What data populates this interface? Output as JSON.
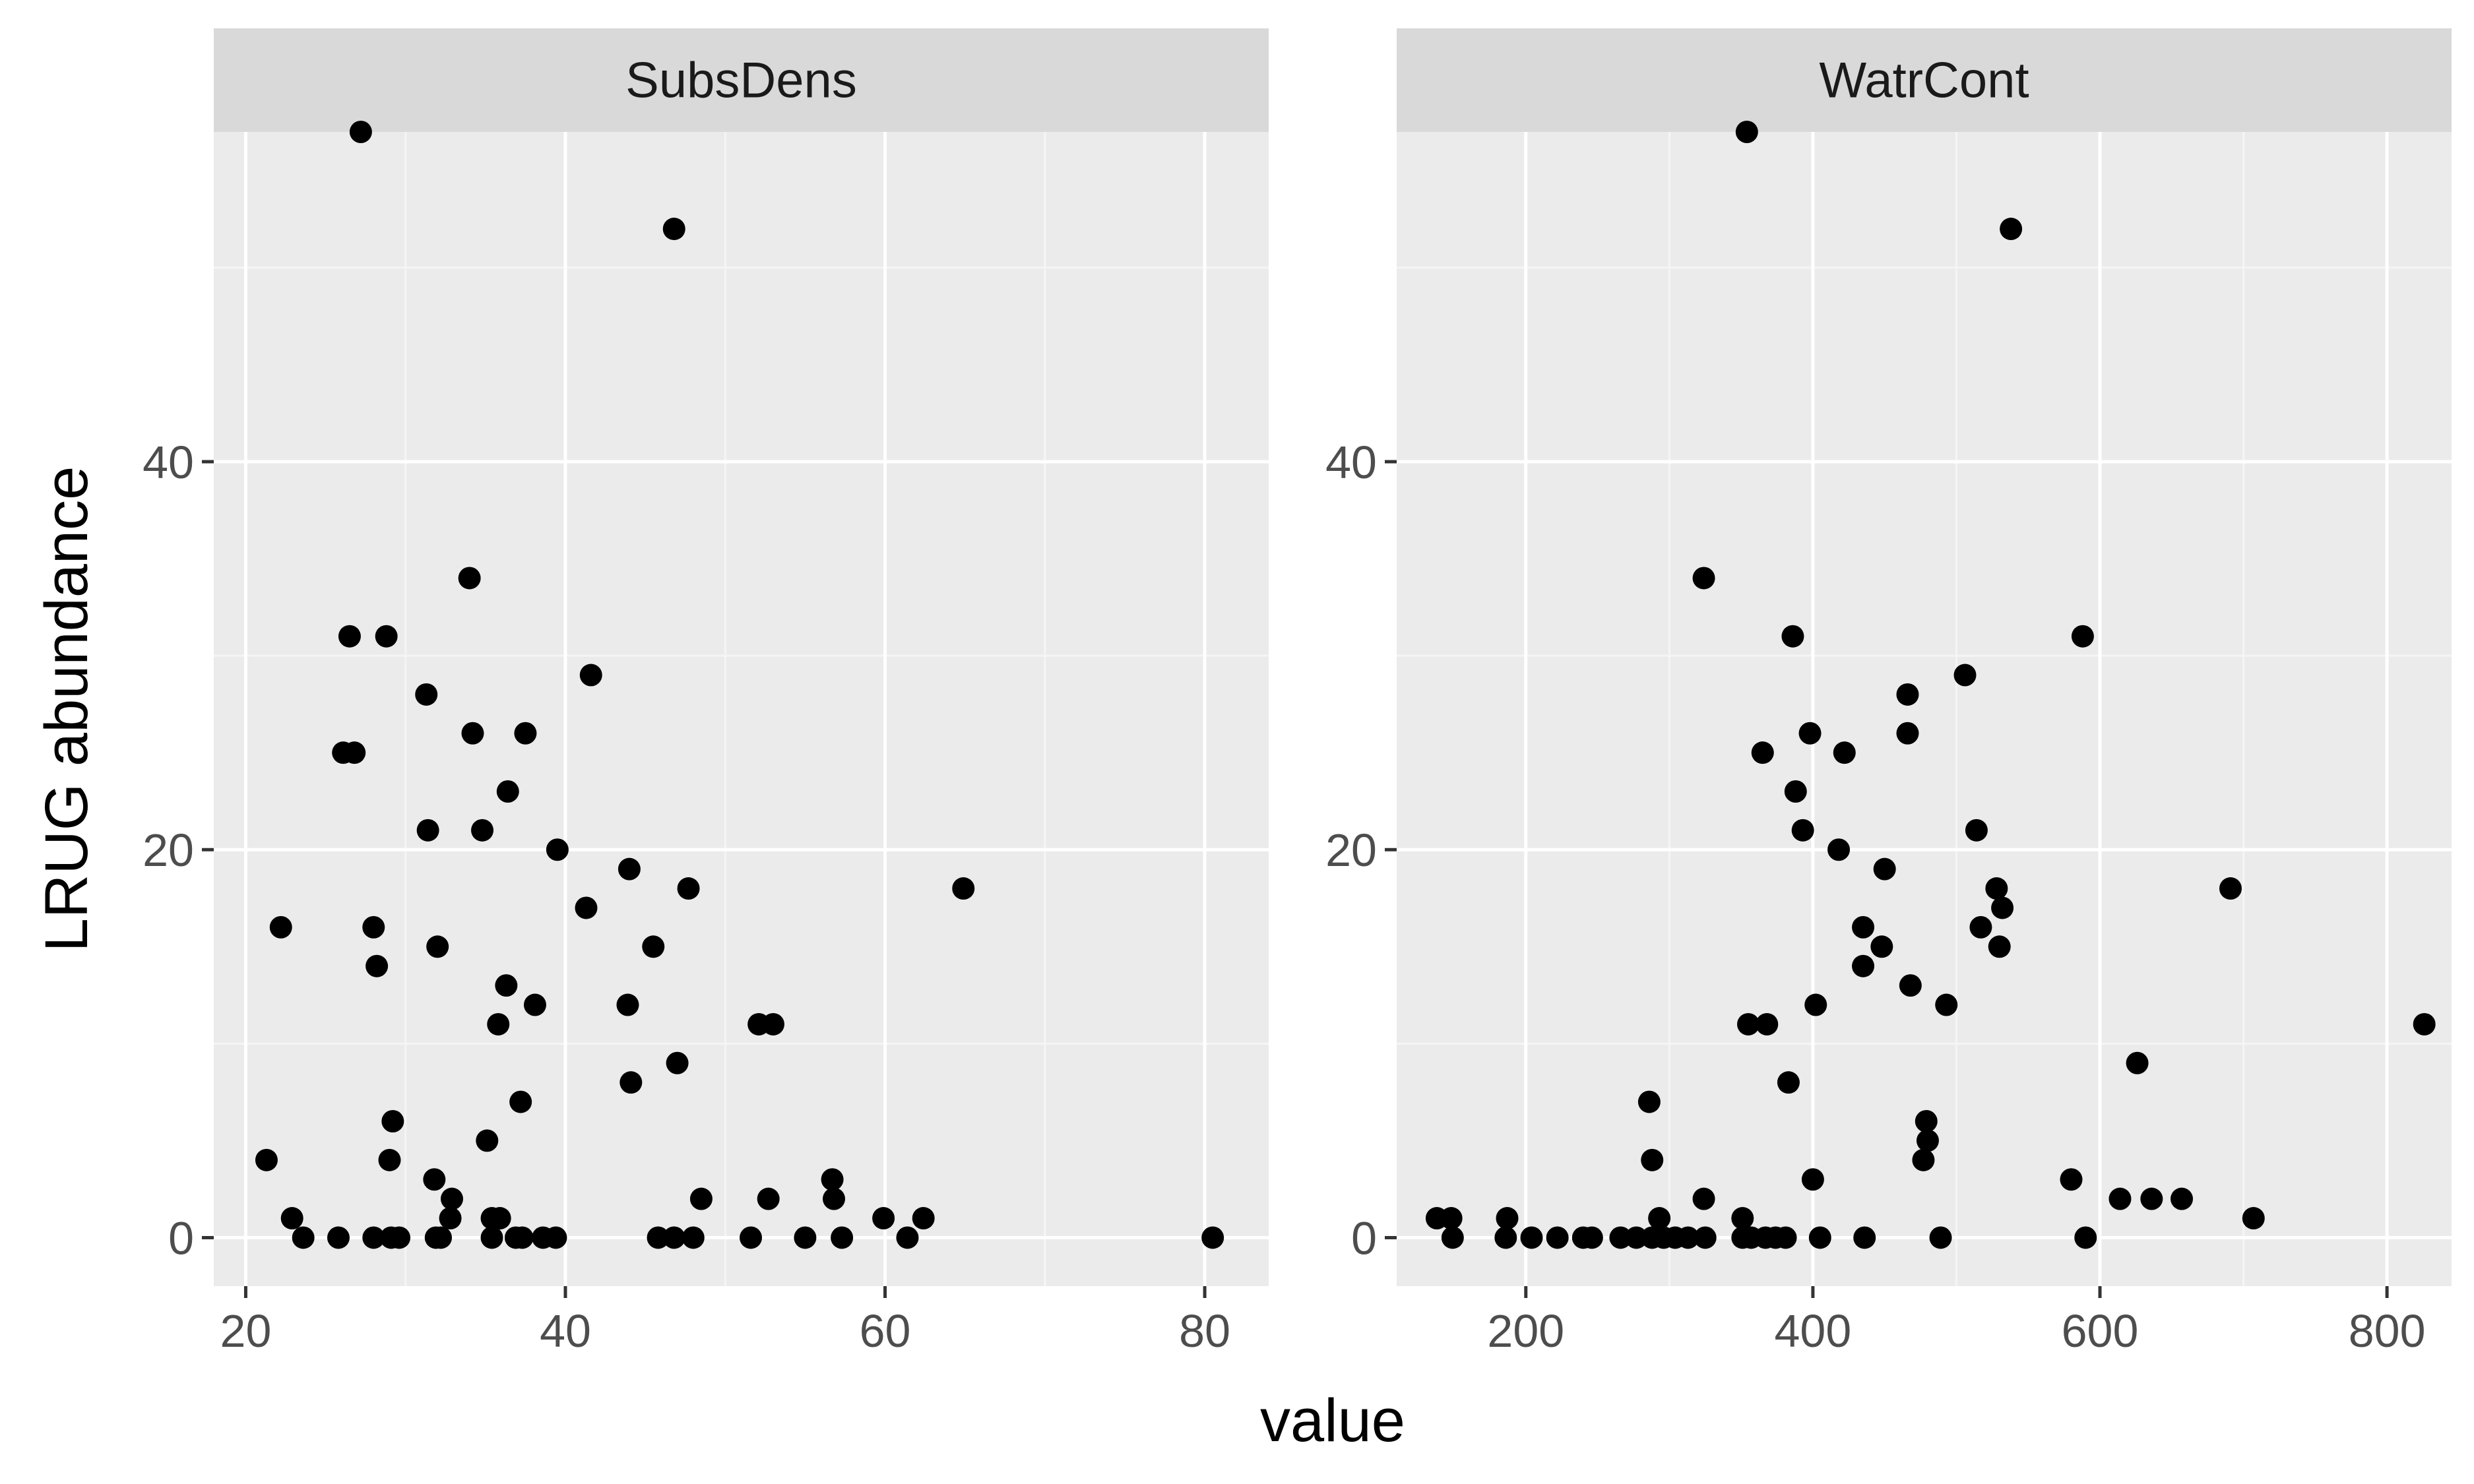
{
  "chart_data": {
    "type": "scatter",
    "ylabel": "LRUG abundance",
    "xlabel": "value",
    "ylim": [
      -2.5,
      57
    ],
    "y_ticks": [
      0,
      20,
      40
    ],
    "panels": [
      {
        "name": "SubsDens",
        "xlim": [
          18,
          84
        ],
        "x_ticks": [
          20,
          40,
          60,
          80
        ],
        "points": [
          [
            27.2,
            57
          ],
          [
            46.8,
            52
          ],
          [
            34.0,
            34
          ],
          [
            26.5,
            31
          ],
          [
            28.8,
            31
          ],
          [
            41.6,
            29
          ],
          [
            31.3,
            28
          ],
          [
            26.1,
            25
          ],
          [
            26.8,
            25
          ],
          [
            34.2,
            26
          ],
          [
            37.5,
            26
          ],
          [
            36.4,
            23
          ],
          [
            31.4,
            21
          ],
          [
            34.8,
            21
          ],
          [
            39.5,
            20
          ],
          [
            44.0,
            19
          ],
          [
            41.3,
            17
          ],
          [
            47.7,
            18
          ],
          [
            64.9,
            18
          ],
          [
            22.2,
            16
          ],
          [
            28.0,
            16
          ],
          [
            32.0,
            15
          ],
          [
            45.5,
            15
          ],
          [
            28.2,
            14
          ],
          [
            36.3,
            13
          ],
          [
            38.1,
            12
          ],
          [
            43.9,
            12
          ],
          [
            35.8,
            11
          ],
          [
            52.1,
            11
          ],
          [
            53.0,
            11
          ],
          [
            47.0,
            9
          ],
          [
            44.1,
            8
          ],
          [
            37.2,
            7
          ],
          [
            29.2,
            6
          ],
          [
            35.1,
            5
          ],
          [
            21.3,
            4
          ],
          [
            29.0,
            4
          ],
          [
            31.8,
            3
          ],
          [
            56.7,
            3
          ],
          [
            32.9,
            2
          ],
          [
            48.5,
            2
          ],
          [
            52.7,
            2
          ],
          [
            56.8,
            2
          ],
          [
            22.9,
            1
          ],
          [
            32.8,
            1
          ],
          [
            35.4,
            1
          ],
          [
            35.9,
            1
          ],
          [
            59.9,
            1
          ],
          [
            62.4,
            1
          ],
          [
            23.6,
            0
          ],
          [
            25.8,
            0
          ],
          [
            28.0,
            0
          ],
          [
            29.1,
            0
          ],
          [
            29.6,
            0
          ],
          [
            31.9,
            0
          ],
          [
            32.2,
            0
          ],
          [
            35.4,
            0
          ],
          [
            36.9,
            0
          ],
          [
            37.3,
            0
          ],
          [
            38.6,
            0
          ],
          [
            39.4,
            0
          ],
          [
            45.8,
            0
          ],
          [
            46.8,
            0
          ],
          [
            48.0,
            0
          ],
          [
            51.6,
            0
          ],
          [
            55.0,
            0
          ],
          [
            57.3,
            0
          ],
          [
            61.4,
            0
          ],
          [
            80.5,
            0
          ]
        ]
      },
      {
        "name": "WatrCont",
        "xlim": [
          110,
          845
        ],
        "x_ticks": [
          200,
          400,
          600,
          800
        ],
        "points": [
          [
            354,
            57
          ],
          [
            538,
            52
          ],
          [
            324,
            34
          ],
          [
            386,
            31
          ],
          [
            588,
            31
          ],
          [
            506,
            29
          ],
          [
            466,
            28
          ],
          [
            365,
            25
          ],
          [
            398,
            26
          ],
          [
            422,
            25
          ],
          [
            466,
            26
          ],
          [
            388,
            23
          ],
          [
            393,
            21
          ],
          [
            514,
            21
          ],
          [
            418,
            20
          ],
          [
            450,
            19
          ],
          [
            528,
            18
          ],
          [
            691,
            18
          ],
          [
            532,
            17
          ],
          [
            435,
            16
          ],
          [
            517,
            16
          ],
          [
            448,
            15
          ],
          [
            530,
            15
          ],
          [
            435,
            14
          ],
          [
            468,
            13
          ],
          [
            402,
            12
          ],
          [
            493,
            12
          ],
          [
            355,
            11
          ],
          [
            368,
            11
          ],
          [
            826,
            11
          ],
          [
            626,
            9
          ],
          [
            383,
            8
          ],
          [
            286,
            7
          ],
          [
            288,
            4
          ],
          [
            477,
            4
          ],
          [
            479,
            6
          ],
          [
            480,
            5
          ],
          [
            400,
            3
          ],
          [
            580,
            3
          ],
          [
            324,
            2
          ],
          [
            614,
            2
          ],
          [
            636,
            2
          ],
          [
            657,
            2
          ],
          [
            138,
            1
          ],
          [
            148,
            1
          ],
          [
            187,
            1
          ],
          [
            293,
            1
          ],
          [
            351,
            1
          ],
          [
            707,
            1
          ],
          [
            149,
            0
          ],
          [
            186,
            0
          ],
          [
            204,
            0
          ],
          [
            222,
            0
          ],
          [
            240,
            0
          ],
          [
            246,
            0
          ],
          [
            266,
            0
          ],
          [
            277,
            0
          ],
          [
            288,
            0
          ],
          [
            296,
            0
          ],
          [
            304,
            0
          ],
          [
            313,
            0
          ],
          [
            325,
            0
          ],
          [
            351,
            0
          ],
          [
            357,
            0
          ],
          [
            367,
            0
          ],
          [
            374,
            0
          ],
          [
            381,
            0
          ],
          [
            405,
            0
          ],
          [
            436,
            0
          ],
          [
            489,
            0
          ],
          [
            590,
            0
          ]
        ]
      }
    ]
  }
}
